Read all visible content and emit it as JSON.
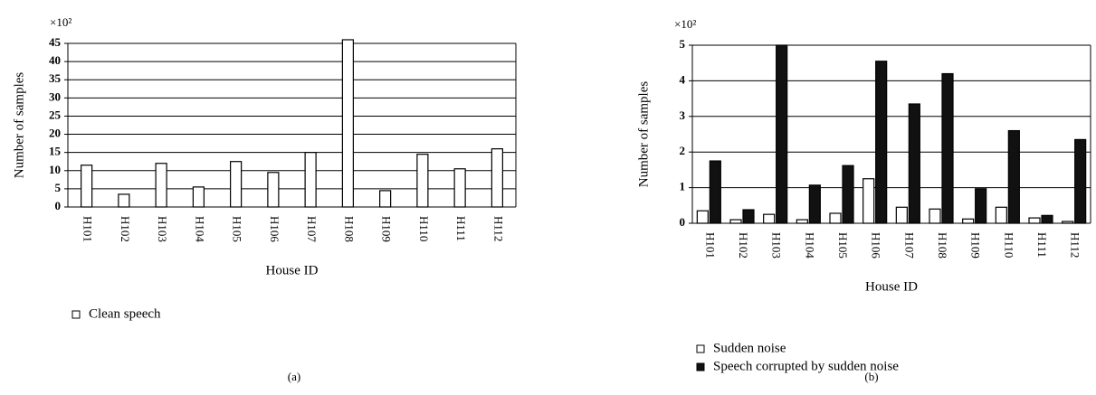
{
  "chart_data": [
    {
      "type": "bar",
      "y_scale_label": "×10²",
      "ylabel": "Number of samples",
      "xlabel": "House ID",
      "caption": "(a)",
      "categories": [
        "H101",
        "H102",
        "H103",
        "H104",
        "H105",
        "H106",
        "H107",
        "H108",
        "H109",
        "H110",
        "H111",
        "H112"
      ],
      "series": [
        {
          "name": "Clean speech",
          "color": "#ffffff",
          "values": [
            11.5,
            3.5,
            12,
            5.5,
            12.5,
            9.5,
            15,
            46,
            4.5,
            14.5,
            10.5,
            16
          ]
        }
      ],
      "ylim": [
        0,
        45
      ],
      "yticks": [
        0,
        5,
        10,
        15,
        20,
        25,
        30,
        35,
        40,
        45
      ],
      "grid": true
    },
    {
      "type": "bar",
      "y_scale_label": "×10²",
      "ylabel": "Number of samples",
      "xlabel": "House ID",
      "caption": "(b)",
      "categories": [
        "H101",
        "H102",
        "H103",
        "H104",
        "H105",
        "H106",
        "H107",
        "H108",
        "H109",
        "H110",
        "H111",
        "H112"
      ],
      "series": [
        {
          "name": "Sudden noise",
          "color": "#ffffff",
          "values": [
            0.35,
            0.1,
            0.25,
            0.1,
            0.28,
            1.25,
            0.45,
            0.4,
            0.12,
            0.45,
            0.15,
            0.05
          ]
        },
        {
          "name": "Speech corrupted by sudden noise",
          "color": "#111111",
          "values": [
            1.75,
            0.38,
            5.0,
            1.07,
            1.62,
            4.55,
            3.35,
            4.2,
            0.97,
            2.6,
            0.22,
            2.35
          ]
        }
      ],
      "ylim": [
        0,
        5
      ],
      "yticks": [
        0,
        1,
        2,
        3,
        4,
        5
      ],
      "grid": true
    }
  ]
}
